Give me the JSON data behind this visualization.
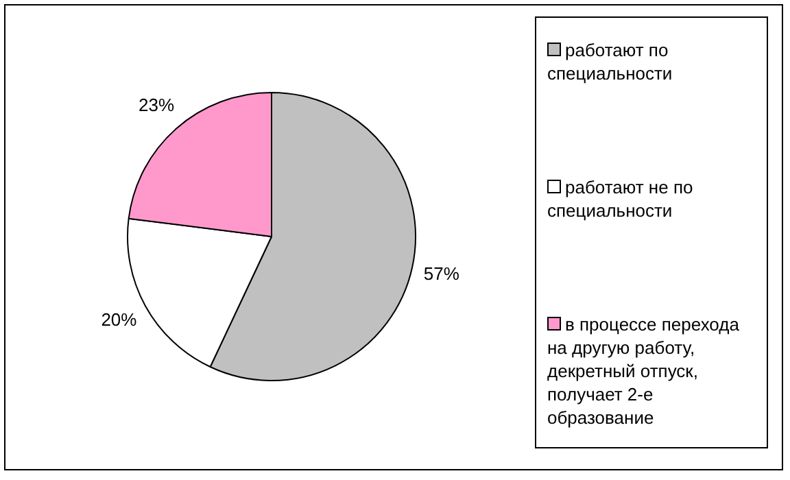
{
  "chart_data": {
    "type": "pie",
    "categories": [
      "работают по специальности",
      "работают не по специальности",
      "в процессе перехода на другую работу, декретный отпуск, получает 2-е образование"
    ],
    "values": [
      57,
      20,
      23
    ],
    "colors": [
      "#c0c0c0",
      "#ffffff",
      "#ff99cc"
    ],
    "value_labels": [
      "57%",
      "20%",
      "23%"
    ],
    "legend": "right"
  }
}
